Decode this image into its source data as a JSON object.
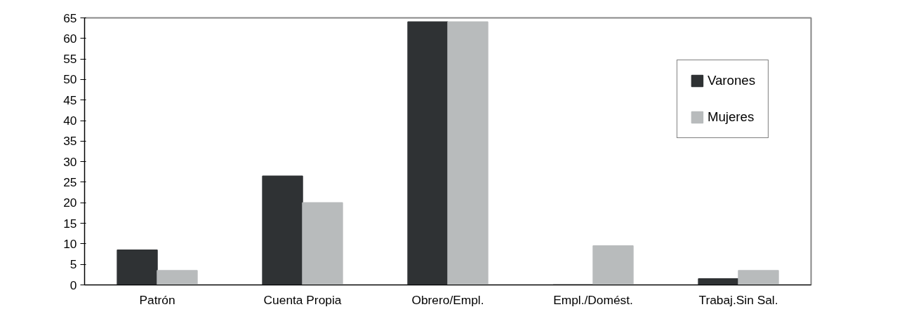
{
  "chart_data": {
    "type": "bar",
    "categories": [
      "Patrón",
      "Cuenta Propia",
      "Obrero/Empl.",
      "Empl./Domést.",
      "Trabaj.Sin Sal."
    ],
    "series": [
      {
        "name": "Varones",
        "color": "#2f3234",
        "values": [
          8.5,
          26.5,
          64,
          0,
          1.5
        ]
      },
      {
        "name": "Mujeres",
        "color": "#b8bbbc",
        "values": [
          3.5,
          20,
          64,
          9.5,
          3.5
        ]
      }
    ],
    "ylim": [
      0,
      65
    ],
    "yticks": [
      0,
      5,
      10,
      15,
      20,
      25,
      30,
      35,
      40,
      45,
      50,
      55,
      60,
      65
    ],
    "grid": false,
    "legend": "top right"
  }
}
